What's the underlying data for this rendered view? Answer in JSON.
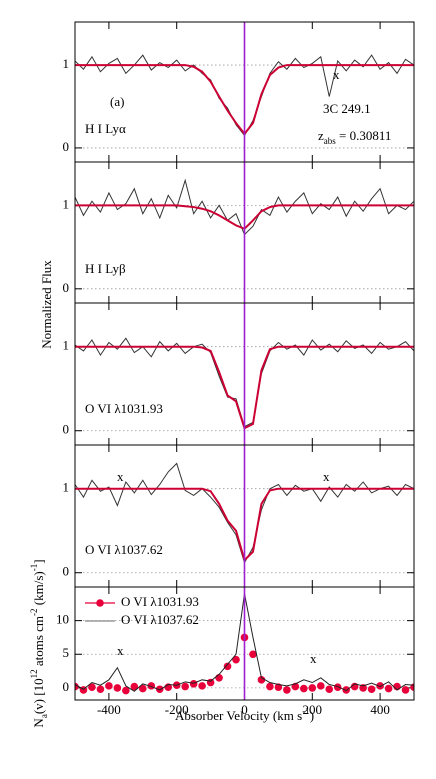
{
  "figure": {
    "ylabel": "Normalized Flux",
    "xlabel": [
      {
        "text": "Absorber Velocity (km s"
      },
      {
        "text": "-1",
        "shift": "sup"
      },
      {
        "text": ")"
      }
    ]
  },
  "chart_data": [
    {
      "type": "line",
      "panel_tag": "(a)",
      "label": "H I Lyα",
      "target": "3C 249.1",
      "redshift": [
        {
          "text": "z"
        },
        {
          "text": "abs",
          "shift": "sub"
        },
        {
          "text": " = 0.30811"
        }
      ],
      "annotations": [
        "x"
      ],
      "x": [
        -500,
        -475,
        -450,
        -425,
        -400,
        -375,
        -350,
        -325,
        -300,
        -275,
        -250,
        -225,
        -200,
        -175,
        -150,
        -125,
        -100,
        -75,
        -50,
        -25,
        0,
        25,
        50,
        75,
        100,
        125,
        150,
        175,
        200,
        225,
        250,
        275,
        300,
        325,
        350,
        375,
        400,
        425,
        450,
        475,
        500
      ],
      "xlim": [
        -500,
        500
      ],
      "xticks": [
        -400,
        -200,
        0,
        200,
        400
      ],
      "show_xtick_labels": false,
      "ylim": [
        -0.17,
        1.52
      ],
      "yticks": [
        0,
        1
      ],
      "grid": true,
      "vline": {
        "x": 0,
        "color": "#a020d0"
      },
      "series": [
        {
          "color": "#333333",
          "values": [
            1.05,
            0.95,
            1.1,
            0.92,
            1.02,
            1.08,
            0.9,
            1.0,
            1.12,
            0.94,
            1.03,
            0.97,
            1.06,
            0.93,
            1.0,
            0.9,
            0.82,
            0.6,
            0.48,
            0.28,
            0.15,
            0.33,
            0.62,
            0.9,
            1.04,
            0.95,
            1.08,
            0.97,
            1.02,
            1.1,
            0.62,
            1.05,
            0.93,
            1.06,
            0.98,
            1.12,
            0.95,
            1.03,
            0.9,
            1.07,
            1.0
          ]
        },
        {
          "color": "#cc0033",
          "values": [
            1,
            1,
            1,
            1,
            1,
            1,
            1,
            1,
            1,
            1,
            1,
            1,
            1,
            1,
            0.98,
            0.92,
            0.8,
            0.62,
            0.45,
            0.3,
            0.17,
            0.3,
            0.65,
            0.88,
            0.97,
            1,
            1,
            1,
            1,
            1,
            1,
            1,
            1,
            1,
            1,
            1,
            1,
            1,
            1,
            1,
            1
          ]
        }
      ]
    },
    {
      "type": "line",
      "label": "H I Lyβ",
      "x": [
        -500,
        -475,
        -450,
        -425,
        -400,
        -375,
        -350,
        -325,
        -300,
        -275,
        -250,
        -225,
        -200,
        -175,
        -150,
        -125,
        -100,
        -75,
        -50,
        -25,
        0,
        25,
        50,
        75,
        100,
        125,
        150,
        175,
        200,
        225,
        250,
        275,
        300,
        325,
        350,
        375,
        400,
        425,
        450,
        475,
        500
      ],
      "xlim": [
        -500,
        500
      ],
      "xticks": [
        -400,
        -200,
        0,
        200,
        400
      ],
      "show_xtick_labels": false,
      "ylim": [
        -0.17,
        1.52
      ],
      "yticks": [
        0,
        1
      ],
      "grid": true,
      "vline": {
        "x": 0,
        "color": "#a020d0"
      },
      "series": [
        {
          "color": "#333333",
          "values": [
            1.1,
            0.88,
            1.05,
            0.92,
            1.15,
            0.95,
            1.02,
            1.2,
            0.9,
            1.08,
            0.85,
            1.12,
            0.97,
            1.3,
            0.9,
            1.05,
            0.85,
            1.0,
            0.82,
            0.9,
            0.65,
            0.75,
            0.95,
            0.88,
            1.1,
            0.92,
            1.05,
            1.15,
            0.9,
            1.02,
            0.95,
            1.1,
            0.87,
            1.05,
            0.93,
            1.08,
            1.2,
            0.9,
            1.0,
            0.95,
            1.05
          ]
        },
        {
          "color": "#cc0033",
          "values": [
            1,
            1,
            1,
            1,
            1,
            1,
            1,
            1,
            1,
            1,
            1,
            1,
            1,
            0.99,
            0.98,
            0.96,
            0.93,
            0.88,
            0.82,
            0.76,
            0.72,
            0.82,
            0.93,
            0.98,
            1,
            1,
            1,
            1,
            1,
            1,
            1,
            1,
            1,
            1,
            1,
            1,
            1,
            1,
            1,
            1,
            1
          ]
        }
      ]
    },
    {
      "type": "line",
      "label": "O VI λ1031.93",
      "x": [
        -500,
        -475,
        -450,
        -425,
        -400,
        -375,
        -350,
        -325,
        -300,
        -275,
        -250,
        -225,
        -200,
        -175,
        -150,
        -125,
        -100,
        -75,
        -50,
        -25,
        0,
        25,
        50,
        75,
        100,
        125,
        150,
        175,
        200,
        225,
        250,
        275,
        300,
        325,
        350,
        375,
        400,
        425,
        450,
        475,
        500
      ],
      "xlim": [
        -500,
        500
      ],
      "xticks": [
        -400,
        -200,
        0,
        200,
        400
      ],
      "show_xtick_labels": false,
      "ylim": [
        -0.17,
        1.52
      ],
      "yticks": [
        0,
        1
      ],
      "grid": true,
      "vline": {
        "x": 0,
        "color": "#a020d0"
      },
      "series": [
        {
          "color": "#333333",
          "values": [
            1.02,
            0.95,
            1.08,
            0.9,
            1.05,
            0.97,
            1.1,
            0.93,
            1.0,
            0.88,
            1.06,
            0.95,
            1.04,
            0.92,
            1.0,
            1.03,
            0.93,
            0.65,
            0.4,
            0.38,
            0.05,
            0.1,
            0.68,
            0.95,
            1.05,
            0.97,
            1.02,
            0.9,
            1.08,
            0.96,
            1.03,
            0.94,
            1.07,
            0.98,
            1.02,
            0.92,
            1.05,
            0.97,
            1.0,
            1.06,
            0.95
          ]
        },
        {
          "color": "#cc0033",
          "values": [
            1,
            1,
            1,
            1,
            1,
            1,
            1,
            1,
            1,
            1,
            1,
            1,
            1,
            1,
            1,
            0.99,
            0.95,
            0.7,
            0.42,
            0.35,
            0.03,
            0.08,
            0.72,
            0.97,
            1,
            1,
            1,
            1,
            1,
            1,
            1,
            1,
            1,
            1,
            1,
            1,
            1,
            1,
            1,
            1,
            1
          ]
        }
      ]
    },
    {
      "type": "line",
      "label": "O VI λ1037.62",
      "annotations": [
        "x",
        "x"
      ],
      "x": [
        -500,
        -475,
        -450,
        -425,
        -400,
        -375,
        -350,
        -325,
        -300,
        -275,
        -250,
        -225,
        -200,
        -175,
        -150,
        -125,
        -100,
        -75,
        -50,
        -25,
        0,
        25,
        50,
        75,
        100,
        125,
        150,
        175,
        200,
        225,
        250,
        275,
        300,
        325,
        350,
        375,
        400,
        425,
        450,
        475,
        500
      ],
      "xlim": [
        -500,
        500
      ],
      "xticks": [
        -400,
        -200,
        0,
        200,
        400
      ],
      "show_xtick_labels": false,
      "ylim": [
        -0.17,
        1.52
      ],
      "yticks": [
        0,
        1
      ],
      "grid": true,
      "vline": {
        "x": 0,
        "color": "#a020d0"
      },
      "series": [
        {
          "color": "#333333",
          "values": [
            1.05,
            0.9,
            1.1,
            0.97,
            1.02,
            0.8,
            1.08,
            0.95,
            1.1,
            0.93,
            1.05,
            1.2,
            1.3,
            0.98,
            0.92,
            1.0,
            0.9,
            0.78,
            0.6,
            0.45,
            0.12,
            0.3,
            0.75,
            1.0,
            1.05,
            0.92,
            1.04,
            0.97,
            1.0,
            0.85,
            1.02,
            0.9,
            1.05,
            0.97,
            1.08,
            0.95,
            1.0,
            1.03,
            0.92,
            1.05,
            1.0
          ]
        },
        {
          "color": "#cc0033",
          "values": [
            1,
            1,
            1,
            1,
            1,
            1,
            1,
            1,
            1,
            1,
            1,
            1,
            1,
            1,
            1,
            1,
            0.97,
            0.82,
            0.62,
            0.5,
            0.15,
            0.25,
            0.82,
            0.98,
            1,
            1,
            1,
            1,
            1,
            1,
            1,
            1,
            1,
            1,
            1,
            1,
            1,
            1,
            1,
            1,
            1
          ]
        }
      ]
    },
    {
      "type": "line",
      "annotations": [
        "x",
        "x"
      ],
      "ylabel": [
        {
          "text": "N"
        },
        {
          "text": "a",
          "shift": "sub"
        },
        {
          "text": "(v) [10"
        },
        {
          "text": "12",
          "shift": "sup"
        },
        {
          "text": " atoms cm"
        },
        {
          "text": "-2",
          "shift": "sup"
        },
        {
          "text": " (km/s)"
        },
        {
          "text": "-1",
          "shift": "sup"
        },
        {
          "text": "]"
        }
      ],
      "x": [
        -500,
        -475,
        -450,
        -425,
        -400,
        -375,
        -350,
        -325,
        -300,
        -275,
        -250,
        -225,
        -200,
        -175,
        -150,
        -125,
        -100,
        -75,
        -50,
        -25,
        0,
        25,
        50,
        75,
        100,
        125,
        150,
        175,
        200,
        225,
        250,
        275,
        300,
        325,
        350,
        375,
        400,
        425,
        450,
        475,
        500
      ],
      "xlim": [
        -500,
        500
      ],
      "xticks": [
        -400,
        -200,
        0,
        200,
        400
      ],
      "show_xtick_labels": true,
      "ylim": [
        -1.8,
        15
      ],
      "yticks": [
        0,
        5,
        10
      ],
      "grid": true,
      "vline": {
        "x": 0,
        "color": "#a020d0"
      },
      "legend": "upper left",
      "series": [
        {
          "name": "O VI λ1031.93",
          "color": "#e8003a",
          "marker": "circle",
          "values": [
            0.2,
            -0.3,
            0.1,
            -0.2,
            0.3,
            0,
            -0.4,
            0.2,
            -0.1,
            0.3,
            -0.2,
            0.1,
            0.4,
            0.2,
            0.6,
            0.3,
            0.8,
            1.5,
            3.2,
            4.2,
            7.5,
            5,
            1.2,
            0.2,
            0.1,
            -0.3,
            0.2,
            -0.1,
            0,
            0.3,
            -0.2,
            0.1,
            -0.3,
            0.2,
            0,
            -0.2,
            0.3,
            -0.1,
            0.2,
            -0.3,
            0.1
          ]
        },
        {
          "name": "O VI λ1037.62",
          "color": "#222222",
          "values": [
            0.5,
            -0.2,
            0.8,
            0.4,
            1.2,
            3,
            0.3,
            -0.5,
            0.6,
            0.2,
            -0.3,
            0.5,
            0.4,
            0.9,
            0.7,
            1.2,
            1.0,
            2.0,
            3.5,
            5,
            14,
            7.5,
            1.5,
            0.8,
            0.5,
            0.3,
            0.6,
            1.2,
            0.8,
            1.5,
            0.5,
            0.2,
            -0.4,
            0.6,
            0.3,
            0.7,
            0.2,
            0.9,
            -0.3,
            0.5,
            0.4
          ]
        }
      ]
    }
  ]
}
